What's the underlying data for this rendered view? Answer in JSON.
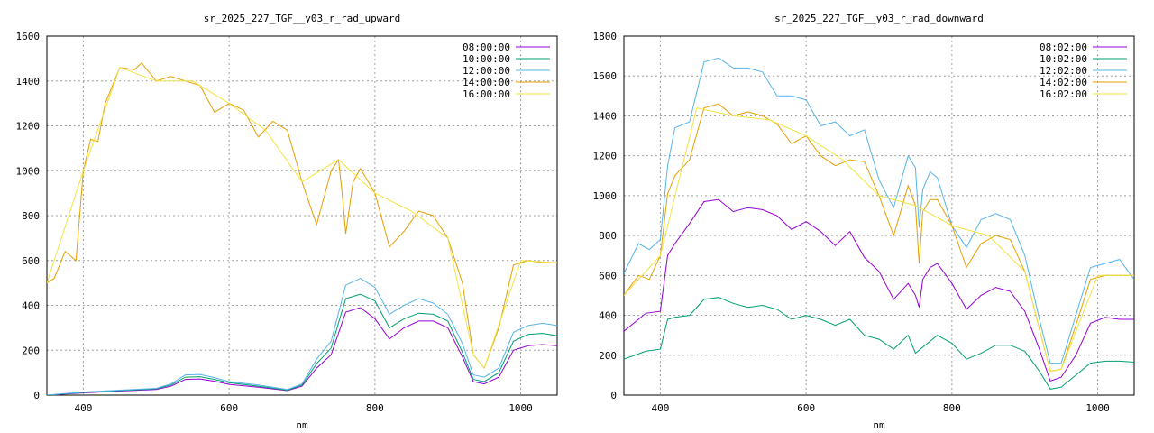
{
  "chart_data": [
    {
      "type": "line",
      "title": "sr_2025_227_TGF__y03_r_rad_upward",
      "xlabel": "nm",
      "ylabel": "",
      "xlim": [
        350,
        1050
      ],
      "ylim": [
        0,
        1600
      ],
      "xticks": [
        400,
        600,
        800,
        1000
      ],
      "yticks": [
        0,
        200,
        400,
        600,
        800,
        1000,
        1200,
        1400,
        1600
      ],
      "grid": true,
      "legend_position": "top-right",
      "series": [
        {
          "name": "08:00:00",
          "color": "#9400d3",
          "x": [
            350,
            400,
            450,
            500,
            520,
            540,
            560,
            580,
            600,
            640,
            680,
            700,
            720,
            740,
            760,
            780,
            800,
            820,
            840,
            860,
            880,
            900,
            920,
            935,
            950,
            970,
            990,
            1010,
            1030,
            1050
          ],
          "y": [
            0,
            10,
            18,
            25,
            40,
            70,
            72,
            62,
            48,
            35,
            20,
            40,
            120,
            180,
            370,
            390,
            340,
            250,
            300,
            330,
            330,
            300,
            170,
            60,
            50,
            80,
            200,
            220,
            225,
            220
          ]
        },
        {
          "name": "10:00:00",
          "color": "#009e73",
          "x": [
            350,
            400,
            450,
            500,
            520,
            540,
            560,
            580,
            600,
            640,
            680,
            700,
            720,
            740,
            760,
            780,
            800,
            820,
            840,
            860,
            880,
            900,
            920,
            935,
            950,
            970,
            990,
            1010,
            1030,
            1050
          ],
          "y": [
            0,
            12,
            20,
            28,
            45,
            80,
            82,
            70,
            55,
            40,
            22,
            45,
            140,
            210,
            430,
            450,
            420,
            300,
            340,
            365,
            360,
            330,
            190,
            70,
            60,
            100,
            240,
            270,
            275,
            265
          ]
        },
        {
          "name": "12:00:00",
          "color": "#56b4e9",
          "x": [
            350,
            400,
            450,
            500,
            520,
            540,
            560,
            580,
            600,
            640,
            680,
            700,
            720,
            740,
            760,
            780,
            800,
            820,
            840,
            860,
            880,
            900,
            920,
            935,
            950,
            970,
            990,
            1010,
            1030,
            1050
          ],
          "y": [
            0,
            14,
            22,
            30,
            50,
            90,
            92,
            78,
            60,
            45,
            25,
            50,
            160,
            240,
            490,
            520,
            480,
            360,
            400,
            430,
            410,
            360,
            230,
            90,
            80,
            120,
            280,
            310,
            320,
            310
          ]
        },
        {
          "name": "14:00:00",
          "color": "#e69f00",
          "x": [
            350,
            360,
            375,
            390,
            400,
            410,
            420,
            430,
            450,
            470,
            480,
            500,
            520,
            540,
            560,
            580,
            600,
            620,
            640,
            660,
            680,
            700,
            720,
            740,
            750,
            755,
            760,
            770,
            780,
            800,
            820,
            840,
            860,
            880,
            900,
            920,
            935,
            950,
            970,
            990,
            1010,
            1030,
            1050
          ],
          "y": [
            500,
            520,
            640,
            600,
            1000,
            1140,
            1130,
            1300,
            1460,
            1450,
            1480,
            1400,
            1420,
            1400,
            1380,
            1260,
            1300,
            1270,
            1150,
            1220,
            1180,
            950,
            760,
            1000,
            1050,
            900,
            720,
            950,
            1010,
            900,
            660,
            730,
            820,
            800,
            700,
            500,
            180,
            120,
            300,
            580,
            600,
            590,
            590
          ]
        },
        {
          "name": "16:00:00",
          "color": "#f0e442",
          "x": [
            350,
            400,
            450,
            500,
            550,
            600,
            650,
            700,
            750,
            800,
            850,
            900,
            935,
            950,
            1000,
            1050
          ],
          "y": [
            500,
            1000,
            1460,
            1400,
            1400,
            1300,
            1180,
            950,
            1050,
            900,
            820,
            700,
            180,
            120,
            600,
            590
          ]
        }
      ]
    },
    {
      "type": "line",
      "title": "sr_2025_227_TGF__y03_r_rad_downward",
      "xlabel": "nm",
      "ylabel": "",
      "xlim": [
        350,
        1050
      ],
      "ylim": [
        0,
        1800
      ],
      "xticks": [
        400,
        600,
        800,
        1000
      ],
      "yticks": [
        0,
        200,
        400,
        600,
        800,
        1000,
        1200,
        1400,
        1600,
        1800
      ],
      "grid": true,
      "legend_position": "top-right",
      "series": [
        {
          "name": "08:02:00",
          "color": "#9400d3",
          "x": [
            350,
            380,
            400,
            410,
            420,
            440,
            460,
            480,
            500,
            520,
            540,
            560,
            580,
            600,
            620,
            640,
            660,
            680,
            700,
            720,
            740,
            750,
            755,
            760,
            770,
            780,
            800,
            820,
            840,
            860,
            880,
            900,
            920,
            935,
            950,
            970,
            990,
            1010,
            1030,
            1050
          ],
          "y": [
            320,
            410,
            420,
            700,
            760,
            860,
            970,
            980,
            920,
            940,
            930,
            900,
            830,
            870,
            820,
            750,
            820,
            690,
            620,
            480,
            560,
            500,
            440,
            580,
            640,
            660,
            560,
            430,
            500,
            540,
            520,
            420,
            230,
            70,
            90,
            200,
            360,
            390,
            380,
            380
          ]
        },
        {
          "name": "10:02:00",
          "color": "#009e73",
          "x": [
            350,
            380,
            400,
            410,
            420,
            440,
            460,
            480,
            500,
            520,
            540,
            560,
            580,
            600,
            620,
            640,
            660,
            680,
            700,
            720,
            740,
            750,
            760,
            780,
            800,
            820,
            840,
            860,
            880,
            900,
            920,
            935,
            950,
            970,
            990,
            1010,
            1030,
            1050
          ],
          "y": [
            180,
            220,
            230,
            380,
            390,
            400,
            480,
            490,
            460,
            440,
            450,
            430,
            380,
            400,
            380,
            350,
            380,
            300,
            280,
            230,
            300,
            210,
            240,
            300,
            260,
            180,
            210,
            250,
            250,
            220,
            120,
            30,
            40,
            100,
            160,
            170,
            170,
            165
          ]
        },
        {
          "name": "12:02:00",
          "color": "#56b4e9",
          "x": [
            350,
            370,
            385,
            400,
            410,
            420,
            440,
            460,
            480,
            500,
            520,
            540,
            560,
            580,
            600,
            620,
            640,
            660,
            680,
            700,
            720,
            740,
            750,
            755,
            760,
            770,
            780,
            800,
            820,
            840,
            860,
            880,
            900,
            920,
            935,
            950,
            970,
            990,
            1010,
            1030,
            1050
          ],
          "y": [
            610,
            760,
            730,
            780,
            1150,
            1340,
            1370,
            1670,
            1690,
            1640,
            1640,
            1620,
            1500,
            1500,
            1480,
            1350,
            1370,
            1300,
            1330,
            1080,
            940,
            1200,
            1140,
            840,
            1030,
            1120,
            1090,
            850,
            740,
            880,
            910,
            880,
            700,
            380,
            160,
            160,
            400,
            640,
            660,
            680,
            580
          ]
        },
        {
          "name": "14:02:00",
          "color": "#e69f00",
          "x": [
            350,
            370,
            385,
            400,
            410,
            420,
            440,
            460,
            480,
            500,
            520,
            540,
            560,
            580,
            600,
            620,
            640,
            660,
            680,
            700,
            720,
            740,
            750,
            755,
            760,
            770,
            780,
            800,
            820,
            840,
            860,
            880,
            900,
            920,
            935,
            950,
            970,
            990,
            1010,
            1030,
            1050
          ],
          "y": [
            500,
            600,
            580,
            700,
            1010,
            1100,
            1180,
            1440,
            1460,
            1400,
            1420,
            1400,
            1360,
            1260,
            1300,
            1200,
            1150,
            1180,
            1170,
            1000,
            800,
            1050,
            950,
            660,
            920,
            980,
            980,
            850,
            640,
            760,
            800,
            780,
            620,
            330,
            120,
            130,
            350,
            580,
            600,
            600,
            600
          ]
        },
        {
          "name": "16:02:00",
          "color": "#f0e442",
          "x": [
            350,
            400,
            450,
            500,
            550,
            600,
            650,
            700,
            750,
            800,
            850,
            900,
            935,
            950,
            1000,
            1050
          ],
          "y": [
            500,
            700,
            1440,
            1400,
            1380,
            1300,
            1180,
            1000,
            950,
            850,
            800,
            620,
            120,
            130,
            600,
            600
          ]
        }
      ]
    }
  ]
}
